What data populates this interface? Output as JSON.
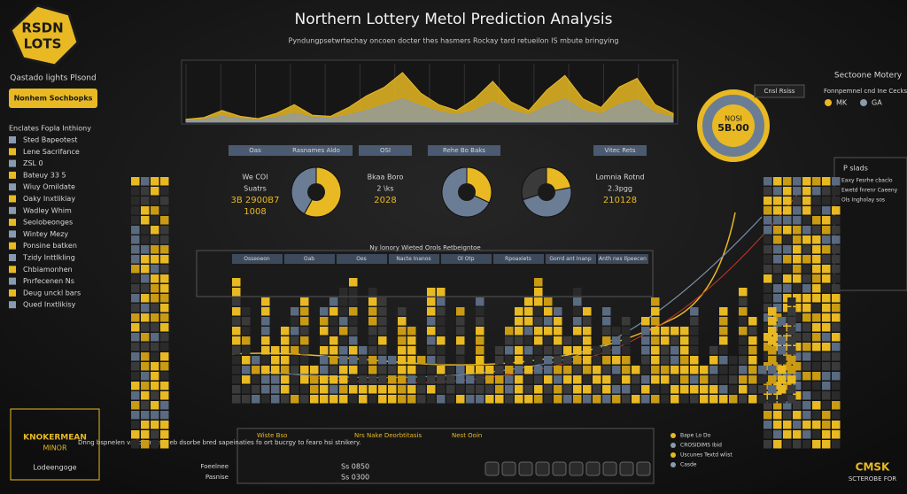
{
  "header": {
    "logo_top": "RSDN",
    "logo_bottom": "LOTS",
    "title": "Northern Lottery Metol Prediction Analysis",
    "subtitle": "Pyndungpsetwrtechay oncoen docter thes hasmers Rockay tard retueilon IS mbute bringying"
  },
  "sidebar": {
    "heading": "Qastado lights Plsond",
    "button": "Nonhem Sochbopks",
    "section": "Enclates Fopla Inthiony",
    "items": [
      "Sted Bapeotest",
      "Lene Sacrifance",
      "ZSL 0",
      "Bateuy 33 5",
      "Wiuy Omildate",
      "Oaky Inxtlikiay",
      "Wadley Whim",
      "Seolobeonges",
      "Wintey Mezy",
      "Ponsine batken",
      "Tzidy Inttlkling",
      "Chbiamonhen",
      "Pnrfecenen Ns",
      "Deug unckl bars",
      "Qued Inxtlikisy"
    ]
  },
  "badge": {
    "title": "KNOKERMEAN",
    "subtitle": "MINOR",
    "caption": "Lodeengoge"
  },
  "top_chart": {
    "ylim": [
      0,
      100
    ],
    "series": [
      {
        "color": "#e8b923",
        "values": [
          5,
          8,
          20,
          10,
          6,
          15,
          30,
          12,
          10,
          25,
          45,
          60,
          85,
          50,
          30,
          20,
          40,
          70,
          35,
          20,
          55,
          80,
          40,
          25,
          60,
          75,
          30,
          15
        ]
      },
      {
        "color": "#8a9bb0",
        "values": [
          3,
          5,
          10,
          6,
          4,
          8,
          15,
          8,
          6,
          12,
          20,
          30,
          40,
          28,
          18,
          12,
          20,
          35,
          20,
          12,
          28,
          40,
          20,
          14,
          30,
          38,
          16,
          8
        ]
      }
    ]
  },
  "gauge": {
    "label": "NOSI",
    "value": "5B.00"
  },
  "right_panel": {
    "title": "Sectoone Motery",
    "button": "Cnsl Rsiss",
    "legend_title": "Fonnpemnel cnd Ine Cecks",
    "legend": [
      "MK",
      "GA"
    ],
    "box_title": "P slads",
    "box_lines": [
      "Eaxy Fesrhe cbaclo",
      "Ewetd fnrenr Caeeny",
      "Ols Ingholay sos"
    ]
  },
  "panels": [
    {
      "label": "Oas",
      "lines": [
        "We COI",
        "Suatrs",
        "3B 2900B7",
        "1008"
      ]
    },
    {
      "label": "Rasnames Aldo",
      "lines": []
    },
    {
      "label": "OSI",
      "lines": [
        "Bkaa Boro",
        "2 \\ks",
        "2028"
      ]
    },
    {
      "label": "Rehe Bo Baks",
      "lines": []
    },
    {
      "label": "Vitec Rets",
      "lines": [
        "Lomnia Rotnd",
        "2.3pgg",
        "210128"
      ]
    }
  ],
  "pies": [
    {
      "values": [
        58,
        42
      ]
    },
    {
      "values": [
        32,
        68
      ]
    },
    {
      "values": [
        22,
        48,
        30
      ]
    }
  ],
  "table": {
    "title": "Ny lonory Wieted Orols Retbeigntoe",
    "headers": [
      "Osseoeon",
      "Oab",
      "Oes",
      "Nacte Inanos",
      "Ol Otp",
      "Rpoaxiets",
      "Gorrd ant Inanp",
      "Anth nes Ilpeecen"
    ]
  },
  "bottom": {
    "note": "Dnng bspnelen vadokanatsis eb dsorbe bred sapeinaties fo ort bucrgy to fearo hsi stnikery.",
    "headers": [
      "Wiste Bso",
      "Nrs Nake Deorbtitasis",
      "Nest Ooin"
    ],
    "rows": [
      "Foeelnee",
      "Pasnise"
    ],
    "values": [
      "Ss 0850",
      "Ss 0300"
    ],
    "legend": [
      "Bape Lo Do",
      "CROSIDIMS Ibid",
      "Uscunes Textd wlist",
      "Casde"
    ],
    "footer_logo": "CMSK",
    "footer_sub": "SCTEROBE FOR"
  }
}
